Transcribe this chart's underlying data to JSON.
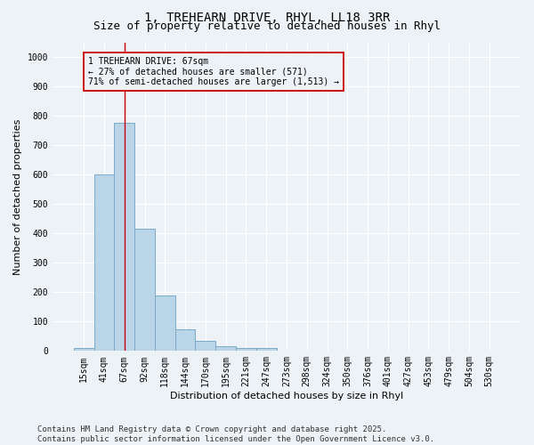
{
  "title_line1": "1, TREHEARN DRIVE, RHYL, LL18 3RR",
  "title_line2": "Size of property relative to detached houses in Rhyl",
  "xlabel": "Distribution of detached houses by size in Rhyl",
  "ylabel": "Number of detached properties",
  "categories": [
    "15sqm",
    "41sqm",
    "67sqm",
    "92sqm",
    "118sqm",
    "144sqm",
    "170sqm",
    "195sqm",
    "221sqm",
    "247sqm",
    "273sqm",
    "298sqm",
    "324sqm",
    "350sqm",
    "376sqm",
    "401sqm",
    "427sqm",
    "453sqm",
    "479sqm",
    "504sqm",
    "530sqm"
  ],
  "values": [
    10,
    600,
    775,
    415,
    190,
    75,
    35,
    15,
    10,
    10,
    0,
    0,
    0,
    0,
    0,
    0,
    0,
    0,
    0,
    0,
    0
  ],
  "bar_color": "#bad4e8",
  "bar_edge_color": "#7aaac8",
  "bar_edge_width": 0.7,
  "ylim": [
    0,
    1050
  ],
  "yticks": [
    0,
    100,
    200,
    300,
    400,
    500,
    600,
    700,
    800,
    900,
    1000
  ],
  "vline_x_index": 2,
  "vline_color": "#cc0000",
  "annotation_line1": "1 TREHEARN DRIVE: 67sqm",
  "annotation_line2": "← 27% of detached houses are smaller (571)",
  "annotation_line3": "71% of semi-detached houses are larger (1,513) →",
  "annotation_box_color": "#cc0000",
  "background_color": "#edf2f7",
  "grid_color": "#ffffff",
  "footer_text": "Contains HM Land Registry data © Crown copyright and database right 2025.\nContains public sector information licensed under the Open Government Licence v3.0.",
  "title_fontsize": 10,
  "subtitle_fontsize": 9,
  "axis_label_fontsize": 8,
  "tick_fontsize": 7,
  "annotation_fontsize": 7,
  "footer_fontsize": 6.5
}
